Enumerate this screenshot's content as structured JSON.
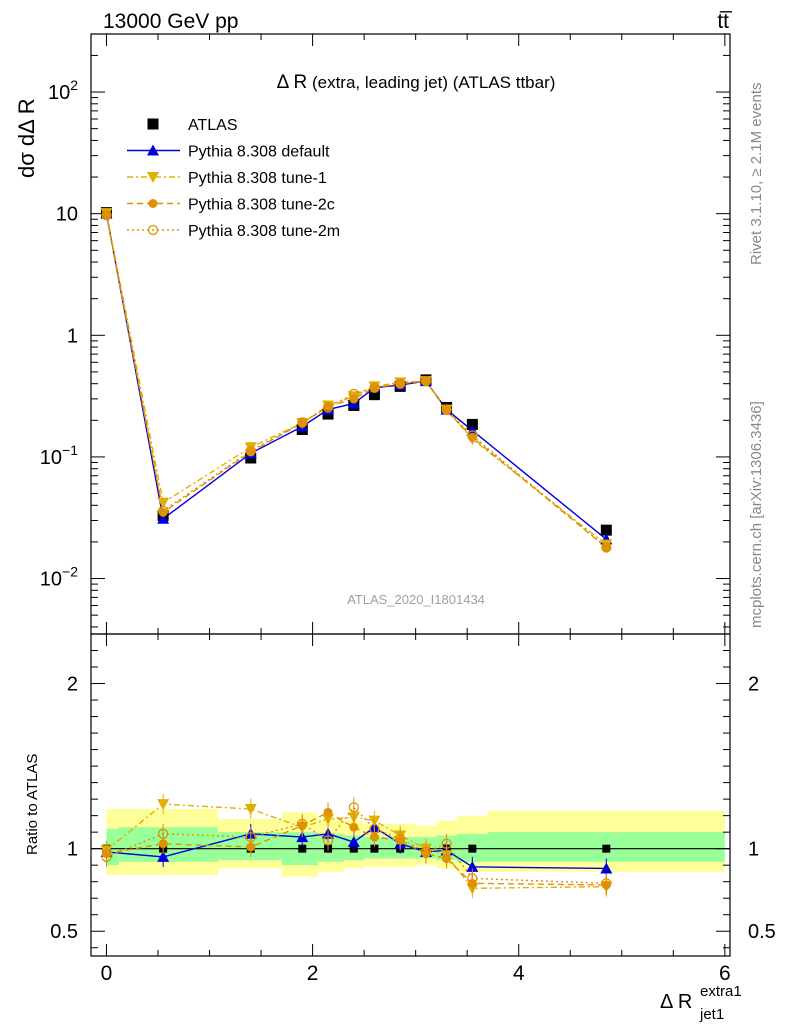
{
  "header": {
    "left": "13000 GeV pp",
    "right": "tt̅"
  },
  "side_labels": {
    "rivet": "Rivet 3.1.10, ≥ 2.1M events",
    "mcplots": "mcplots.cern.ch [arXiv:1306.3436]"
  },
  "main": {
    "title_symbol": "Δ R",
    "title_rest": " (extra, leading jet) (ATLAS ttbar)",
    "ylabel_text": "dσ dΔ R",
    "analysis_id": "ATLAS_2020_I1801434"
  },
  "ratio": {
    "ylabel": "Ratio to ATLAS"
  },
  "xaxis": {
    "label": "Δ R",
    "label_sup": "extra1",
    "label_sub": "jet1"
  },
  "legend": [
    {
      "label": "ATLAS",
      "color": "#000000",
      "marker": "square"
    },
    {
      "label": "Pythia 8.308 default",
      "color": "#0000dd",
      "marker": "triangle-up"
    },
    {
      "label": "Pythia 8.308 tune-1",
      "color": "#e0b000",
      "marker": "triangle-down"
    },
    {
      "label": "Pythia 8.308 tune-2c",
      "color": "#e09000",
      "marker": "circle"
    },
    {
      "label": "Pythia 8.308 tune-2m",
      "color": "#e09000",
      "marker": "circle-open"
    }
  ],
  "chart_data": {
    "type": "scatter",
    "xlim": [
      -0.15,
      6.05
    ],
    "main_ylim": [
      0.0035,
      300
    ],
    "main_yscale": "log",
    "main_yticks": [
      {
        "v": 0.01,
        "base": "10",
        "exp": "−2"
      },
      {
        "v": 0.1,
        "base": "10",
        "exp": "−1"
      },
      {
        "v": 1,
        "base": "1",
        "exp": ""
      },
      {
        "v": 10,
        "base": "10",
        "exp": ""
      },
      {
        "v": 100,
        "base": "10",
        "exp": "2"
      }
    ],
    "ratio_ylim": [
      0.35,
      2.3
    ],
    "ratio_yticks": [
      0.5,
      1,
      2
    ],
    "xticks": [
      0,
      2,
      4,
      6
    ],
    "x": [
      0,
      0.55,
      1.4,
      1.9,
      2.15,
      2.4,
      2.6,
      2.85,
      3.1,
      3.3,
      3.55,
      4.85
    ],
    "series": [
      {
        "name": "ATLAS",
        "values": [
          10.2,
          0.033,
          0.098,
          0.168,
          0.225,
          0.265,
          0.325,
          0.38,
          0.43,
          0.255,
          0.185,
          0.025
        ]
      },
      {
        "name": "Pythia 8.308 default",
        "values": [
          10.0,
          0.031,
          0.107,
          0.178,
          0.245,
          0.275,
          0.37,
          0.39,
          0.42,
          0.245,
          0.165,
          0.021
        ],
        "ratio": [
          0.98,
          0.95,
          1.09,
          1.07,
          1.09,
          1.04,
          1.13,
          1.03,
          0.98,
          0.99,
          0.89,
          0.88
        ]
      },
      {
        "name": "Pythia 8.308 tune-1",
        "values": [
          10.1,
          0.042,
          0.12,
          0.19,
          0.265,
          0.315,
          0.38,
          0.41,
          0.42,
          0.245,
          0.14,
          0.019
        ],
        "ratio": [
          0.99,
          1.27,
          1.24,
          1.13,
          1.18,
          1.19,
          1.17,
          1.08,
          1.0,
          0.96,
          0.76,
          0.77
        ]
      },
      {
        "name": "Pythia 8.308 tune-2c",
        "values": [
          9.9,
          0.035,
          0.11,
          0.19,
          0.26,
          0.3,
          0.37,
          0.4,
          0.42,
          0.24,
          0.145,
          0.018
        ],
        "ratio": [
          0.97,
          1.03,
          1.01,
          1.14,
          1.22,
          1.13,
          1.07,
          1.05,
          0.97,
          0.94,
          0.79,
          0.78
        ]
      },
      {
        "name": "Pythia 8.308 tune-2m",
        "values": [
          9.7,
          0.036,
          0.112,
          0.192,
          0.255,
          0.33,
          0.37,
          0.4,
          0.42,
          0.245,
          0.15,
          0.018
        ],
        "ratio": [
          0.95,
          1.09,
          1.07,
          1.15,
          1.05,
          1.25,
          1.12,
          1.06,
          0.98,
          1.03,
          0.82,
          0.79
        ]
      }
    ],
    "bins": [
      0,
      0.12,
      1.08,
      1.7,
      2.05,
      2.3,
      2.5,
      2.7,
      3.0,
      3.2,
      3.4,
      3.7,
      6.0
    ],
    "band_green": [
      [
        0.9,
        1.12
      ],
      [
        0.92,
        1.13
      ],
      [
        0.93,
        1.1
      ],
      [
        0.9,
        1.1
      ],
      [
        0.92,
        1.09
      ],
      [
        0.93,
        1.08
      ],
      [
        0.94,
        1.07
      ],
      [
        0.94,
        1.07
      ],
      [
        0.94,
        1.07
      ],
      [
        0.93,
        1.08
      ],
      [
        0.92,
        1.09
      ],
      [
        0.92,
        1.1
      ]
    ],
    "band_yellow": [
      [
        0.84,
        1.24
      ],
      [
        0.84,
        1.24
      ],
      [
        0.88,
        1.18
      ],
      [
        0.83,
        1.22
      ],
      [
        0.86,
        1.18
      ],
      [
        0.88,
        1.17
      ],
      [
        0.89,
        1.15
      ],
      [
        0.89,
        1.15
      ],
      [
        0.9,
        1.14
      ],
      [
        0.88,
        1.17
      ],
      [
        0.86,
        1.2
      ],
      [
        0.86,
        1.23
      ]
    ]
  }
}
